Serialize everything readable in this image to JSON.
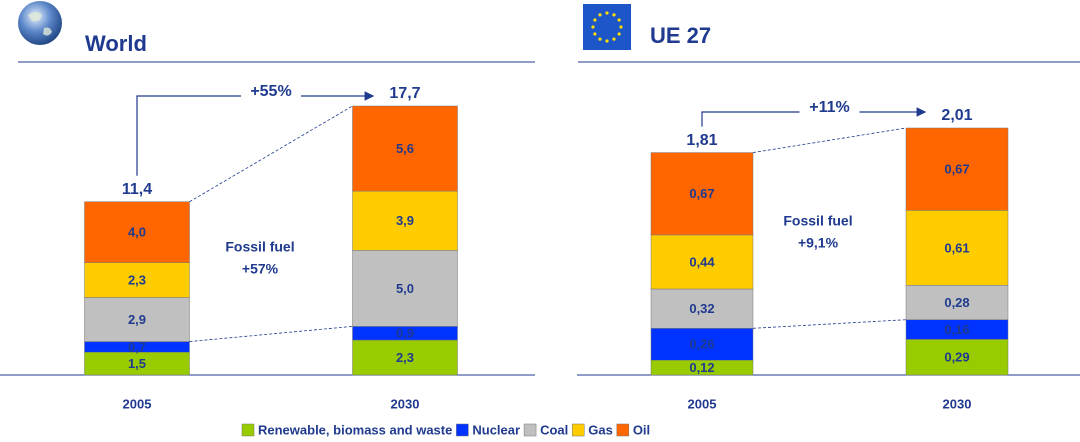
{
  "chart_data": [
    {
      "type": "bar",
      "stacked": true,
      "title": "World",
      "categories": [
        "2005",
        "2030"
      ],
      "series": [
        {
          "name": "Renewable, biomass and waste",
          "color": "#99cc00",
          "values": [
            1.5,
            2.3
          ],
          "value_labels": [
            "1,5",
            "2,3"
          ]
        },
        {
          "name": "Nuclear",
          "color": "#0033ff",
          "values": [
            0.7,
            0.9
          ],
          "value_labels": [
            "0,7",
            "0,9"
          ]
        },
        {
          "name": "Coal",
          "color": "#c0c0c0",
          "values": [
            2.9,
            5.0
          ],
          "value_labels": [
            "2,9",
            "5,0"
          ]
        },
        {
          "name": "Gas",
          "color": "#ffcc00",
          "values": [
            2.3,
            3.9
          ],
          "value_labels": [
            "2,3",
            "3,9"
          ]
        },
        {
          "name": "Oil",
          "color": "#ff6600",
          "values": [
            4.0,
            5.6
          ],
          "value_labels": [
            "4,0",
            "5,6"
          ]
        }
      ],
      "totals": [
        11.4,
        17.7
      ],
      "total_labels": [
        "11,4",
        "17,7"
      ],
      "growth": "+55%",
      "fossil_fuel": {
        "label": "Fossil fuel",
        "change": "+57%"
      }
    },
    {
      "type": "bar",
      "stacked": true,
      "title": "UE 27",
      "categories": [
        "2005",
        "2030"
      ],
      "series": [
        {
          "color": "#99cc00",
          "values": [
            0.12,
            0.29
          ],
          "value_labels": [
            "0,12",
            "0,29"
          ]
        },
        {
          "color": "#0033ff",
          "values": [
            0.26,
            0.16
          ],
          "value_labels": [
            "0,26",
            "0,16"
          ]
        },
        {
          "color": "#c0c0c0",
          "values": [
            0.32,
            0.28
          ],
          "value_labels": [
            "0,32",
            "0,28"
          ]
        },
        {
          "color": "#ffcc00",
          "values": [
            0.44,
            0.61
          ],
          "value_labels": [
            "0,44",
            "0,61"
          ]
        },
        {
          "color": "#ff6600",
          "values": [
            0.67,
            0.67
          ],
          "value_labels": [
            "0,67",
            "0,67"
          ]
        }
      ],
      "totals": [
        1.81,
        2.01
      ],
      "total_labels": [
        "1,81",
        "2,01"
      ],
      "growth": "+11%",
      "fossil_fuel": {
        "label": "Fossil fuel",
        "change": "+9,1%"
      }
    }
  ]
}
